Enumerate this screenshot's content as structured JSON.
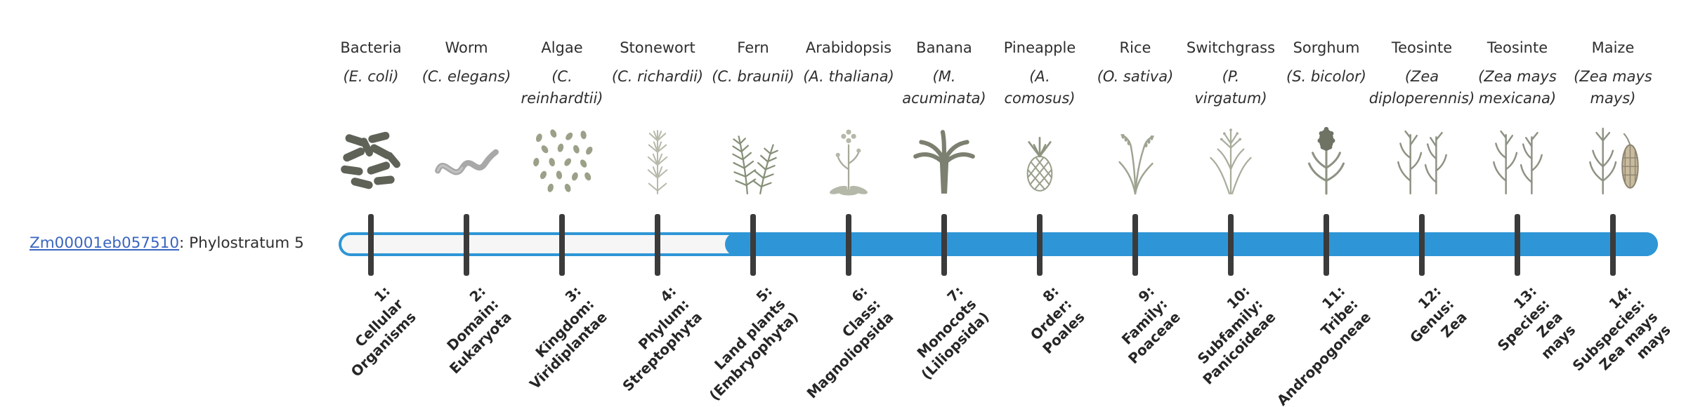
{
  "gene": {
    "id": "Zm00001eb057510",
    "suffix": ": Phylostratum 5",
    "phylostratum": 5
  },
  "colors": {
    "accent": "#2e96d6",
    "bar_empty": "#f6f6f6",
    "link": "#3a66c0",
    "tick": "#3b3b3b",
    "text": "#2f2f2f"
  },
  "bar": {
    "phylostratum": 5,
    "total_strata": 14
  },
  "taxa": [
    {
      "common": "Bacteria",
      "scientific": "(E. coli)",
      "icon": "bacteria-icon",
      "stratum": "1:\nCellular\nOrganisms"
    },
    {
      "common": "Worm",
      "scientific": "(C. elegans)",
      "icon": "worm-icon",
      "stratum": "2:\nDomain:\nEukaryota"
    },
    {
      "common": "Algae",
      "scientific": "(C.\nreinhardtii)",
      "icon": "algae-icon",
      "stratum": "3:\nKingdom:\nViridiplantae"
    },
    {
      "common": "Stonewort",
      "scientific": "(C. richardii)",
      "icon": "stonewort-icon",
      "stratum": "4:\nPhylum:\nStreptophyta"
    },
    {
      "common": "Fern",
      "scientific": "(C. braunii)",
      "icon": "fern-icon",
      "stratum": "5:\nLand plants\n(Embryophyta)"
    },
    {
      "common": "Arabidopsis",
      "scientific": "(A. thaliana)",
      "icon": "arabidopsis-icon",
      "stratum": "6:\nClass:\nMagnoliopsida"
    },
    {
      "common": "Banana",
      "scientific": "(M.\nacuminata)",
      "icon": "banana-icon",
      "stratum": "7:\nMonocots\n(Liliopsida)"
    },
    {
      "common": "Pineapple",
      "scientific": "(A.\ncomosus)",
      "icon": "pineapple-icon",
      "stratum": "8:\nOrder:\nPoales"
    },
    {
      "common": "Rice",
      "scientific": "(O. sativa)",
      "icon": "rice-icon",
      "stratum": "9:\nFamily:\nPoaceae"
    },
    {
      "common": "Switchgrass",
      "scientific": "(P.\nvirgatum)",
      "icon": "switchgrass-icon",
      "stratum": "10:\nSubfamily:\nPanicoideae"
    },
    {
      "common": "Sorghum",
      "scientific": "(S. bicolor)",
      "icon": "sorghum-icon",
      "stratum": "11:\nTribe:\nAndropogoneae"
    },
    {
      "common": "Teosinte",
      "scientific": "(Zea\ndiploperennis)",
      "icon": "teosinte-icon",
      "stratum": "12:\nGenus:\nZea"
    },
    {
      "common": "Teosinte",
      "scientific": "(Zea mays\nmexicana)",
      "icon": "teosinte-icon",
      "stratum": "13:\nSpecies:\nZea\nmays"
    },
    {
      "common": "Maize",
      "scientific": "(Zea mays\nmays)",
      "icon": "maize-icon",
      "stratum": "14:\nSubspecies:\nZea mays\nmays"
    }
  ],
  "chart_data": {
    "type": "bar",
    "title": "Zm00001eb057510: Phylostratum 5",
    "categories": [
      "1: Cellular Organisms",
      "2: Domain: Eukaryota",
      "3: Kingdom: Viridiplantae",
      "4: Phylum: Streptophyta",
      "5: Land plants (Embryophyta)",
      "6: Class: Magnoliopsida",
      "7: Monocots (Liliopsida)",
      "8: Order: Poales",
      "9: Family: Poaceae",
      "10: Subfamily: Panicoideae",
      "11: Tribe: Andropogoneae",
      "12: Genus: Zea",
      "13: Species: Zea mays",
      "14: Subspecies: Zea mays mays"
    ],
    "filled_range": [
      5,
      14
    ],
    "unfilled_range": [
      1,
      4
    ]
  }
}
